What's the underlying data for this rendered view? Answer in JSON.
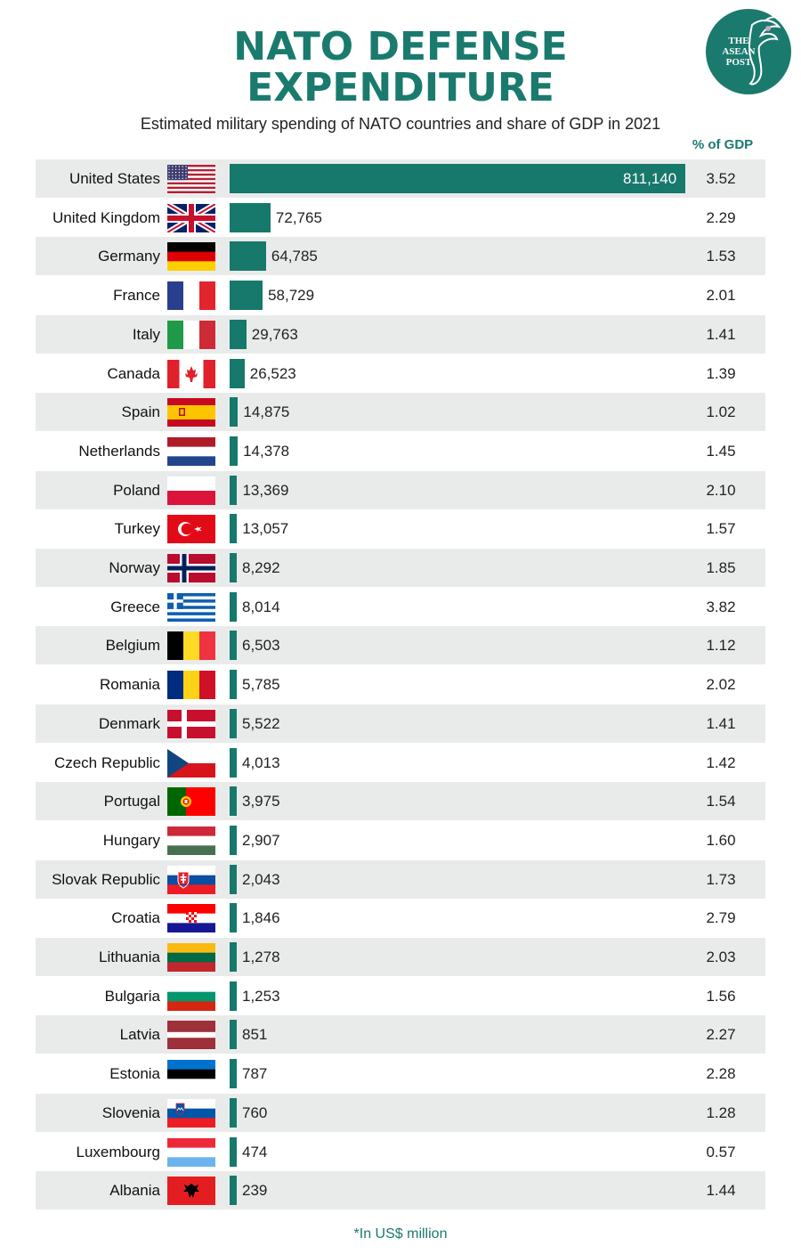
{
  "title_line1": "NATO DEFENSE",
  "title_line2": "EXPENDITURE",
  "subtitle": "Estimated military spending of NATO countries and share of GDP in 2021",
  "gdp_header": "% of GDP",
  "footnote": "*In US$ million",
  "logo": {
    "line1": "THE",
    "line2": "ASEAN",
    "line3": "POST"
  },
  "colors": {
    "accent": "#1a7a6e",
    "bar": "#17786c",
    "row_alt": "#e9ebeb"
  },
  "chart_data": {
    "type": "bar",
    "orientation": "horizontal",
    "title": "NATO DEFENSE EXPENDITURE",
    "subtitle": "Estimated military spending of NATO countries and share of GDP in 2021",
    "unit": "*In US$ million",
    "categories": [
      "United States",
      "United Kingdom",
      "Germany",
      "France",
      "Italy",
      "Canada",
      "Spain",
      "Netherlands",
      "Poland",
      "Turkey",
      "Norway",
      "Greece",
      "Belgium",
      "Romania",
      "Denmark",
      "Czech Republic",
      "Portugal",
      "Hungary",
      "Slovak Republic",
      "Croatia",
      "Lithuania",
      "Bulgaria",
      "Latvia",
      "Estonia",
      "Slovenia",
      "Luxembourg",
      "Albania"
    ],
    "values": [
      811140,
      72765,
      64785,
      58729,
      29763,
      26523,
      14875,
      14378,
      13369,
      13057,
      8292,
      8014,
      6503,
      5785,
      5522,
      4013,
      3975,
      2907,
      2043,
      1846,
      1278,
      1253,
      851,
      787,
      760,
      474,
      239
    ],
    "labels": [
      "811,140",
      "72,765",
      "64,785",
      "58,729",
      "29,763",
      "26,523",
      "14,875",
      "14,378",
      "13,369",
      "13,057",
      "8,292",
      "8,014",
      "6,503",
      "5,785",
      "5,522",
      "4,013",
      "3,975",
      "2,907",
      "2,043",
      "1,846",
      "1,278",
      "1,253",
      "851",
      "787",
      "760",
      "474",
      "239"
    ],
    "gdp_share": [
      "3.52",
      "2.29",
      "1.53",
      "2.01",
      "1.41",
      "1.39",
      "1.02",
      "1.45",
      "2.10",
      "1.57",
      "1.85",
      "3.82",
      "1.12",
      "2.02",
      "1.41",
      "1.42",
      "1.54",
      "1.60",
      "1.73",
      "2.79",
      "2.03",
      "1.56",
      "2.27",
      "2.28",
      "1.28",
      "0.57",
      "1.44"
    ],
    "flags": [
      "us-flag-icon",
      "uk-flag-icon",
      "germany-flag-icon",
      "france-flag-icon",
      "italy-flag-icon",
      "canada-flag-icon",
      "spain-flag-icon",
      "netherlands-flag-icon",
      "poland-flag-icon",
      "turkey-flag-icon",
      "norway-flag-icon",
      "greece-flag-icon",
      "belgium-flag-icon",
      "romania-flag-icon",
      "denmark-flag-icon",
      "czech-flag-icon",
      "portugal-flag-icon",
      "hungary-flag-icon",
      "slovakia-flag-icon",
      "croatia-flag-icon",
      "lithuania-flag-icon",
      "bulgaria-flag-icon",
      "latvia-flag-icon",
      "estonia-flag-icon",
      "slovenia-flag-icon",
      "luxembourg-flag-icon",
      "albania-flag-icon"
    ],
    "grid": false,
    "legend": "none"
  }
}
